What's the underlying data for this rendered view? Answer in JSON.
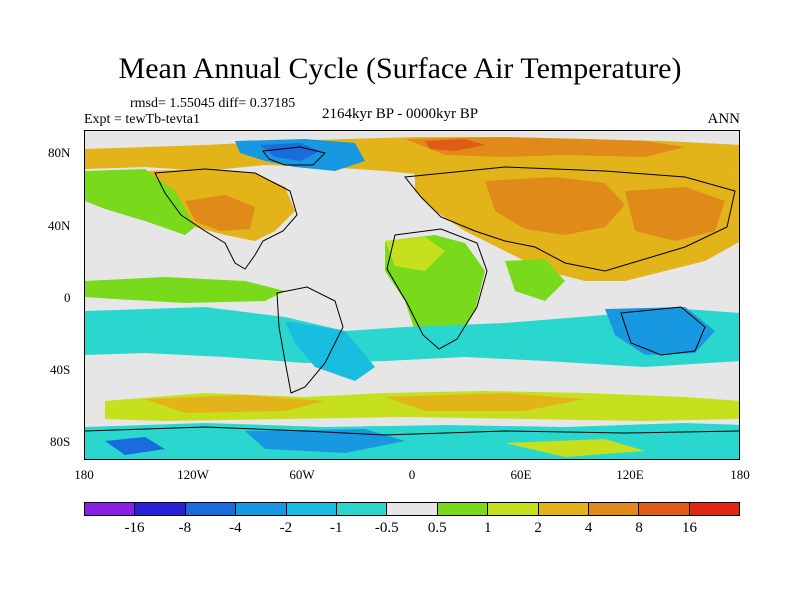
{
  "title": "Mean Annual Cycle (Surface Air Temperature)",
  "stats": "rmsd= 1.55045 diff= 0.37185",
  "experiment": "Expt = tewTb-tevta1",
  "period": "2164kyr BP - 0000kyr BP",
  "season": "ANN",
  "lat_labels": [
    "80N",
    "40N",
    "0",
    "40S",
    "80S"
  ],
  "lon_labels": [
    "180",
    "120W",
    "60W",
    "0",
    "60E",
    "120E",
    "180"
  ],
  "colorbar": {
    "labels": [
      "-16",
      "-8",
      "-4",
      "-2",
      "-1",
      "-0.5",
      "0.5",
      "1",
      "2",
      "4",
      "8",
      "16"
    ],
    "colors": [
      "#8a1fe6",
      "#2a20d8",
      "#1a6bdc",
      "#1898e0",
      "#19bde0",
      "#2ad7cf",
      "#e6e6e6",
      "#78da1a",
      "#c6e01e",
      "#e2b41a",
      "#e08a1a",
      "#e05a18",
      "#e02810"
    ]
  },
  "colors": {
    "neutral": "#e6e6e6",
    "warm_light": "#e2b41a",
    "warm_mid": "#e08a1a",
    "warm_strong": "#e05a18",
    "green": "#78da1a",
    "yellowgreen": "#c6e01e",
    "cool_light": "#2ad7cf",
    "cool_mid": "#19bde0",
    "cool_deep": "#1898e0",
    "cool_dark": "#1a6bdc"
  }
}
